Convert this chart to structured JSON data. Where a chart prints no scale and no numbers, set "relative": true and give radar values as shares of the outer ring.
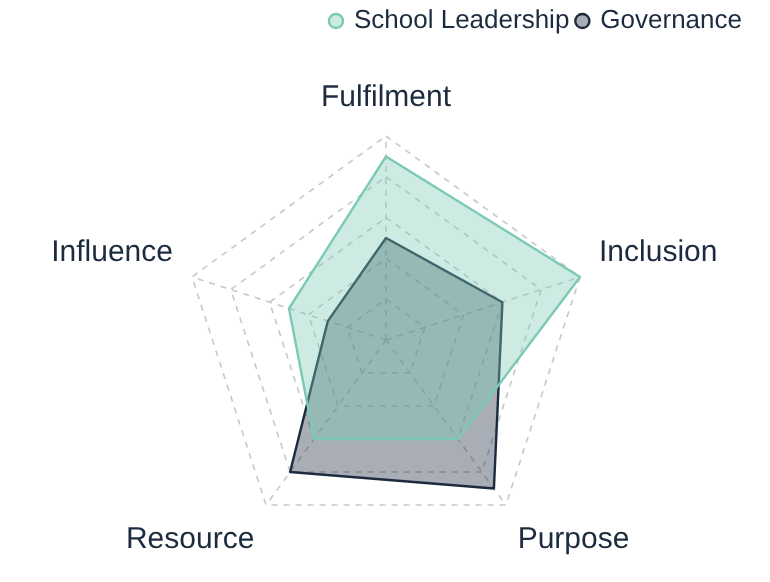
{
  "chart_data": {
    "type": "radar",
    "relative": true,
    "categories": [
      "Fulfilment",
      "Inclusion",
      "Purpose",
      "Resource",
      "Influence"
    ],
    "series": [
      {
        "name": "School Leadership",
        "color": "#7ccab5",
        "values": [
          0.9,
          1.0,
          0.6,
          0.6,
          0.5
        ]
      },
      {
        "name": "Governance",
        "color": "#1c2b40",
        "values": [
          0.5,
          0.6,
          0.9,
          0.8,
          0.3
        ]
      }
    ],
    "grid": true,
    "legend": "top right",
    "marker": "none",
    "line_style": "solid"
  }
}
